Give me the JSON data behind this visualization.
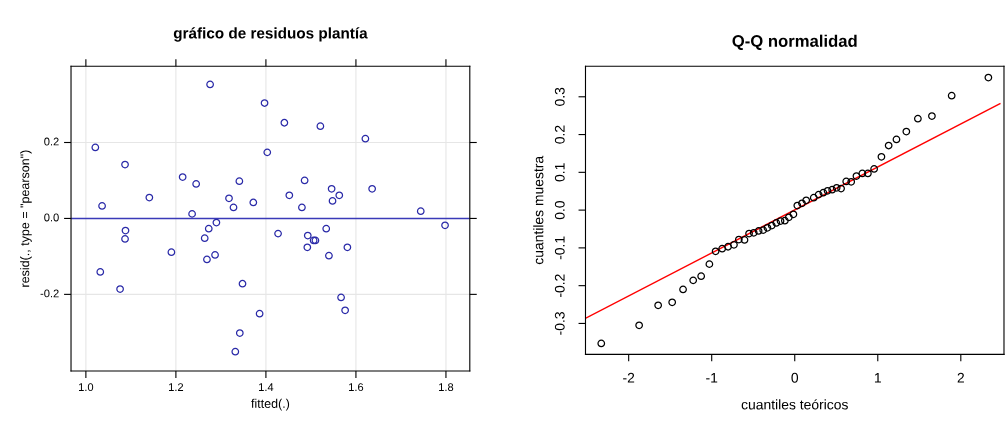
{
  "chart_data": [
    {
      "type": "scatter",
      "title": "gráfico de residuos plantía",
      "xlabel": "fitted(.)",
      "ylabel": "resid(., type = \"pearson\")",
      "xlim": [
        0.967,
        1.853
      ],
      "ylim": [
        -0.402,
        0.401
      ],
      "xticks": [
        {
          "value": 1.0,
          "label": "1.0"
        },
        1.2,
        1.4,
        1.6,
        1.8
      ],
      "yticks": [
        -0.2,
        {
          "value": 0.0,
          "label": "0.0"
        },
        0.2
      ],
      "grid": true,
      "marker": "circle",
      "legend": false,
      "ref_lines": [
        {
          "axis": "y",
          "value": 0,
          "color": "#3a3ab8",
          "line_style": "solid"
        }
      ],
      "series": [
        {
          "color": "#2a2aa8",
          "x": [
            1.276,
            1.021,
            1.087,
            1.215,
            1.245,
            1.341,
            1.141,
            1.318,
            1.036,
            1.328,
            1.236,
            1.29,
            1.088,
            1.273,
            1.087,
            1.264,
            1.19,
            1.269,
            1.287,
            1.032,
            1.076,
            1.348,
            1.342,
            1.332,
            1.397,
            1.441,
            1.521,
            1.621,
            1.403,
            1.486,
            1.546,
            1.636,
            1.452,
            1.563,
            1.548,
            1.372,
            1.48,
            1.744,
            1.798,
            1.427,
            1.534,
            1.493,
            1.506,
            1.51,
            1.492,
            1.581,
            1.54,
            1.567,
            1.576,
            1.386
          ],
          "values": [
            0.353,
            0.187,
            0.142,
            0.109,
            0.091,
            0.098,
            0.055,
            0.053,
            0.033,
            0.029,
            0.012,
            -0.011,
            -0.032,
            -0.027,
            -0.054,
            -0.052,
            -0.089,
            -0.108,
            -0.096,
            -0.141,
            -0.186,
            -0.172,
            -0.302,
            -0.351,
            0.304,
            0.252,
            0.243,
            0.21,
            0.174,
            0.1,
            0.078,
            0.078,
            0.061,
            0.061,
            0.046,
            0.042,
            0.029,
            0.019,
            -0.018,
            -0.04,
            -0.027,
            -0.045,
            -0.058,
            -0.058,
            -0.076,
            -0.076,
            -0.098,
            -0.208,
            -0.242,
            -0.251
          ]
        }
      ]
    },
    {
      "type": "scatter",
      "title": "Q-Q normalidad",
      "xlabel": "cuantiles teóricos",
      "ylabel": "cuantiles muestra",
      "xlim": [
        -2.52,
        2.52
      ],
      "ylim": [
        -0.382,
        0.381
      ],
      "xticks": [
        -2,
        -1,
        0,
        1,
        2
      ],
      "yticks": [
        -0.3,
        -0.2,
        -0.1,
        {
          "value": 0.0,
          "label": "0.0"
        },
        0.1,
        0.2,
        0.3
      ],
      "grid": false,
      "marker": "circle",
      "legend": false,
      "series": [
        {
          "color": "#000000",
          "x": [
            -2.33,
            -1.874,
            -1.645,
            -1.476,
            -1.345,
            -1.223,
            -1.127,
            -1.028,
            -0.953,
            -0.874,
            -0.803,
            -0.732,
            -0.673,
            -0.605,
            -0.55,
            -0.494,
            -0.435,
            -0.38,
            -0.329,
            -0.277,
            -0.222,
            -0.171,
            -0.119,
            -0.071,
            -0.016,
            0.031,
            0.087,
            0.138,
            0.229,
            0.288,
            0.344,
            0.395,
            0.451,
            0.505,
            0.558,
            0.62,
            0.68,
            0.743,
            0.814,
            0.881,
            0.956,
            1.044,
            1.131,
            1.225,
            1.344,
            1.483,
            1.652,
            1.89,
            2.332
          ],
          "values": [
            -0.353,
            -0.305,
            -0.252,
            -0.244,
            -0.21,
            -0.186,
            -0.175,
            -0.143,
            -0.109,
            -0.102,
            -0.097,
            -0.092,
            -0.078,
            -0.079,
            -0.062,
            -0.06,
            -0.055,
            -0.053,
            -0.047,
            -0.041,
            -0.034,
            -0.029,
            -0.028,
            -0.019,
            -0.011,
            0.012,
            0.018,
            0.026,
            0.033,
            0.041,
            0.046,
            0.051,
            0.054,
            0.059,
            0.057,
            0.076,
            0.075,
            0.09,
            0.097,
            0.097,
            0.109,
            0.141,
            0.171,
            0.187,
            0.208,
            0.242,
            0.249,
            0.303,
            0.351
          ]
        },
        {
          "type": "line",
          "color": "#ff0000",
          "marker": "none",
          "x": [
            -2.515,
            2.471
          ],
          "values": [
            -0.286,
            0.282
          ]
        }
      ]
    }
  ]
}
